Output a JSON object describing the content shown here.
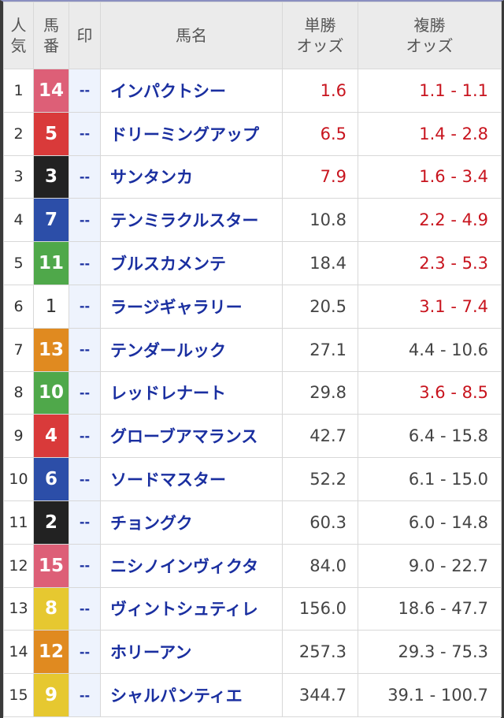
{
  "header": {
    "popularity": [
      "人",
      "気"
    ],
    "horse_number": [
      "馬",
      "番"
    ],
    "mark": "印",
    "horse_name": "馬名",
    "win_odds": [
      "単勝",
      "オッズ"
    ],
    "place_odds": [
      "複勝",
      "オッズ"
    ]
  },
  "frame_colors": {
    "pink": "#dd5f77",
    "red": "#d93a3a",
    "black": "#222222",
    "blue": "#2c4ea8",
    "green": "#4fa84a",
    "white": "#ffffff",
    "orange": "#e08a20",
    "yellow": "#e6c830"
  },
  "rows": [
    {
      "popularity": "1",
      "number": "14",
      "frame": "pink",
      "mark": "--",
      "name": "インパクトシー",
      "win": "1.6",
      "place": "1.1 - 1.1",
      "win_red": true,
      "place_red": true
    },
    {
      "popularity": "2",
      "number": "5",
      "frame": "red",
      "mark": "--",
      "name": "ドリーミングアップ",
      "win": "6.5",
      "place": "1.4 - 2.8",
      "win_red": true,
      "place_red": true
    },
    {
      "popularity": "3",
      "number": "3",
      "frame": "black",
      "mark": "--",
      "name": "サンタンカ",
      "win": "7.9",
      "place": "1.6 - 3.4",
      "win_red": true,
      "place_red": true
    },
    {
      "popularity": "4",
      "number": "7",
      "frame": "blue",
      "mark": "--",
      "name": "テンミラクルスター",
      "win": "10.8",
      "place": "2.2 - 4.9",
      "win_red": false,
      "place_red": true
    },
    {
      "popularity": "5",
      "number": "11",
      "frame": "green",
      "mark": "--",
      "name": "ブルスカメンテ",
      "win": "18.4",
      "place": "2.3 - 5.3",
      "win_red": false,
      "place_red": true
    },
    {
      "popularity": "6",
      "number": "1",
      "frame": "white",
      "mark": "--",
      "name": "ラージギャラリー",
      "win": "20.5",
      "place": "3.1 - 7.4",
      "win_red": false,
      "place_red": true
    },
    {
      "popularity": "7",
      "number": "13",
      "frame": "orange",
      "mark": "--",
      "name": "テンダールック",
      "win": "27.1",
      "place": "4.4 - 10.6",
      "win_red": false,
      "place_red": false
    },
    {
      "popularity": "8",
      "number": "10",
      "frame": "green",
      "mark": "--",
      "name": "レッドレナート",
      "win": "29.8",
      "place": "3.6 - 8.5",
      "win_red": false,
      "place_red": true
    },
    {
      "popularity": "9",
      "number": "4",
      "frame": "red",
      "mark": "--",
      "name": "グローブアマランス",
      "win": "42.7",
      "place": "6.4 - 15.8",
      "win_red": false,
      "place_red": false
    },
    {
      "popularity": "10",
      "number": "6",
      "frame": "blue",
      "mark": "--",
      "name": "ソードマスター",
      "win": "52.2",
      "place": "6.1 - 15.0",
      "win_red": false,
      "place_red": false
    },
    {
      "popularity": "11",
      "number": "2",
      "frame": "black",
      "mark": "--",
      "name": "チョングク",
      "win": "60.3",
      "place": "6.0 - 14.8",
      "win_red": false,
      "place_red": false
    },
    {
      "popularity": "12",
      "number": "15",
      "frame": "pink",
      "mark": "--",
      "name": "ニシノインヴィクタ",
      "win": "84.0",
      "place": "9.0 - 22.7",
      "win_red": false,
      "place_red": false
    },
    {
      "popularity": "13",
      "number": "8",
      "frame": "yellow",
      "mark": "--",
      "name": "ヴィントシュティレ",
      "win": "156.0",
      "place": "18.6 - 47.7",
      "win_red": false,
      "place_red": false
    },
    {
      "popularity": "14",
      "number": "12",
      "frame": "orange",
      "mark": "--",
      "name": "ホリーアン",
      "win": "257.3",
      "place": "29.3 - 75.3",
      "win_red": false,
      "place_red": false
    },
    {
      "popularity": "15",
      "number": "9",
      "frame": "yellow",
      "mark": "--",
      "name": "シャルパンティエ",
      "win": "344.7",
      "place": "39.1 - 100.7",
      "win_red": false,
      "place_red": false
    }
  ]
}
